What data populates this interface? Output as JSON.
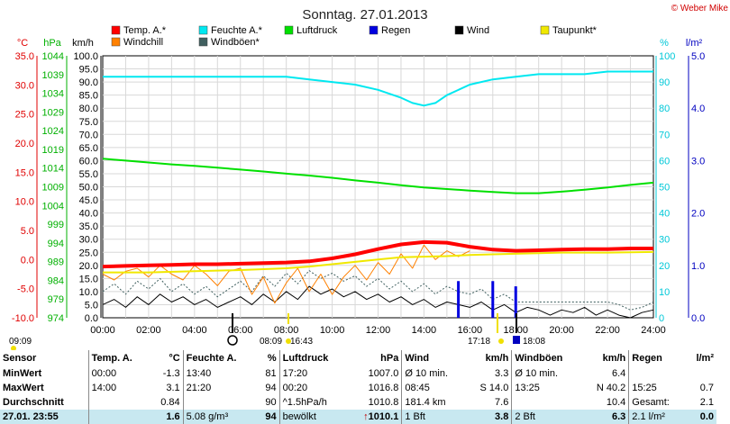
{
  "title": "Sonntag. 27.01.2013",
  "copyright": "© Weber Mike",
  "legend": [
    {
      "label": "Temp. A.*",
      "color": "#ff0000"
    },
    {
      "label": "Feuchte A.*",
      "color": "#00e8f0"
    },
    {
      "label": "Luftdruck",
      "color": "#00e000"
    },
    {
      "label": "Regen",
      "color": "#0000e0"
    },
    {
      "label": "Wind",
      "color": "#000000"
    },
    {
      "label": "Taupunkt*",
      "color": "#f0e800"
    },
    {
      "label": "Windchill",
      "color": "#ff8000"
    },
    {
      "label": "Windböen*",
      "color": "#406060"
    }
  ],
  "axis_units": {
    "temp": "°C",
    "pressure": "hPa",
    "wind": "km/h",
    "humidity": "%",
    "rain": "l/m²"
  },
  "chart_data": {
    "type": "line",
    "x_labels": [
      "00:00",
      "02:00",
      "04:00",
      "06:00",
      "08:00",
      "10:00",
      "12:00",
      "14:00",
      "16:00",
      "18:00",
      "20:00",
      "22:00",
      "24:00"
    ],
    "axes": {
      "temp": {
        "min": -10,
        "max": 35,
        "ticks": [
          "35.0",
          "30.0",
          "25.0",
          "20.0",
          "15.0",
          "10.0",
          "5.0",
          "0.0",
          "-5.0",
          "-10.0"
        ]
      },
      "pressure": {
        "min": 974,
        "max": 1044,
        "ticks": [
          "1044",
          "1039",
          "1034",
          "1029",
          "1024",
          "1019",
          "1014",
          "1009",
          "1004",
          "999",
          "994",
          "989",
          "984",
          "979",
          "974"
        ]
      },
      "wind": {
        "min": 0,
        "max": 100,
        "ticks": [
          "100.0",
          "95.0",
          "90.0",
          "85.0",
          "80.0",
          "75.0",
          "70.0",
          "65.0",
          "60.0",
          "55.0",
          "50.0",
          "45.0",
          "40.0",
          "35.0",
          "30.0",
          "25.0",
          "20.0",
          "15.0",
          "10.0",
          "5.0",
          "0.0"
        ]
      },
      "humidity": {
        "min": 0,
        "max": 100,
        "ticks": [
          "100",
          "90",
          "80",
          "70",
          "60",
          "50",
          "40",
          "30",
          "20",
          "10",
          "0"
        ]
      },
      "rain": {
        "min": 0,
        "max": 5,
        "ticks": [
          "5.0",
          "4.0",
          "3.0",
          "2.0",
          "1.0",
          "0.0"
        ]
      }
    },
    "series": [
      {
        "name": "Temp. A.*",
        "axis": "temp",
        "color": "#ff0000",
        "x": [
          0,
          1,
          2,
          3,
          4,
          5,
          6,
          7,
          8,
          9,
          10,
          11,
          12,
          13,
          14,
          15,
          16,
          17,
          18,
          19,
          20,
          21,
          22,
          23,
          24
        ],
        "y": [
          -1.2,
          -1.1,
          -1.0,
          -0.9,
          -0.8,
          -0.8,
          -0.7,
          -0.6,
          -0.5,
          -0.3,
          0.2,
          0.9,
          1.8,
          2.6,
          3.0,
          2.9,
          2.2,
          1.7,
          1.5,
          1.6,
          1.7,
          1.8,
          1.8,
          1.9,
          1.9
        ]
      },
      {
        "name": "Feuchte A.*",
        "axis": "humidity",
        "color": "#00e8f0",
        "x": [
          0,
          2,
          4,
          6,
          8,
          9,
          10,
          11,
          12,
          13,
          13.5,
          14,
          14.5,
          15,
          16,
          17,
          18,
          19,
          20,
          21,
          22,
          23,
          24
        ],
        "y": [
          92,
          92,
          92,
          92,
          92,
          91,
          90,
          89,
          87,
          84,
          82,
          81,
          82,
          85,
          89,
          91,
          92,
          93,
          93,
          93,
          94,
          94,
          94
        ]
      },
      {
        "name": "Luftdruck",
        "axis": "pressure",
        "color": "#00e000",
        "x": [
          0,
          1,
          2,
          3,
          4,
          5,
          6,
          7,
          8,
          9,
          10,
          11,
          12,
          13,
          14,
          15,
          16,
          17,
          18,
          19,
          20,
          21,
          22,
          23,
          24
        ],
        "y": [
          1016.5,
          1016.0,
          1015.5,
          1015.0,
          1014.6,
          1014.1,
          1013.6,
          1013.1,
          1012.5,
          1012.0,
          1011.4,
          1010.7,
          1010.1,
          1009.4,
          1008.8,
          1008.4,
          1008.0,
          1007.6,
          1007.3,
          1007.3,
          1007.7,
          1008.2,
          1008.8,
          1009.5,
          1010.1
        ]
      },
      {
        "name": "Taupunkt*",
        "axis": "temp",
        "color": "#f0e800",
        "x": [
          0,
          2,
          4,
          6,
          8,
          9,
          10,
          11,
          12,
          13,
          14,
          15,
          16,
          17,
          18,
          20,
          22,
          24
        ],
        "y": [
          -2.2,
          -2.2,
          -2.0,
          -1.8,
          -1.5,
          -1.2,
          -0.8,
          -0.4,
          0.0,
          0.4,
          0.5,
          0.6,
          0.8,
          0.9,
          1.0,
          1.2,
          1.2,
          1.3
        ]
      },
      {
        "name": "Windchill",
        "axis": "temp",
        "color": "#ff8000",
        "x": [
          0,
          0.5,
          1,
          1.5,
          2,
          2.5,
          3,
          3.5,
          4,
          4.5,
          5,
          5.5,
          6,
          6.5,
          7,
          7.5,
          8,
          8.5,
          9,
          9.5,
          10,
          10.5,
          11,
          11.5,
          12,
          12.5,
          13,
          13.5,
          14,
          14.5,
          15,
          15.5,
          16
        ],
        "y": [
          -2.5,
          -3.5,
          -2.0,
          -1.5,
          -3.0,
          -1.0,
          -2.5,
          -3.5,
          -1.0,
          -2.5,
          -4.5,
          -2.0,
          -1.5,
          -6.0,
          -3.0,
          -7.5,
          -4.0,
          -1.5,
          -5.5,
          -2.5,
          -6.0,
          -3.0,
          -1.0,
          -3.5,
          -0.5,
          -2.5,
          1.0,
          -1.5,
          2.5,
          0.0,
          1.5,
          0.5,
          1.5
        ]
      },
      {
        "name": "Wind",
        "axis": "wind",
        "color": "#000000",
        "x": [
          0,
          0.5,
          1,
          1.5,
          2,
          2.5,
          3,
          3.5,
          4,
          4.5,
          5,
          5.5,
          6,
          6.5,
          7,
          7.5,
          8,
          8.5,
          9,
          9.5,
          10,
          10.5,
          11,
          11.5,
          12,
          12.5,
          13,
          13.5,
          14,
          14.5,
          15,
          15.5,
          16,
          16.5,
          17,
          17.5,
          18,
          18.5,
          19,
          19.5,
          20,
          20.5,
          21,
          21.5,
          22,
          22.5,
          23,
          23.5,
          24
        ],
        "y": [
          5,
          7,
          4,
          8,
          5,
          9,
          6,
          8,
          5,
          7,
          4,
          6,
          8,
          5,
          9,
          6,
          10,
          7,
          12,
          9,
          11,
          8,
          10,
          7,
          9,
          6,
          8,
          5,
          7,
          4,
          6,
          5,
          4,
          6,
          3,
          5,
          2,
          4,
          3,
          1,
          3,
          2,
          4,
          1,
          3,
          1,
          0,
          2,
          3
        ]
      },
      {
        "name": "Windböen*",
        "axis": "wind",
        "color": "#406060",
        "x": [
          0,
          0.5,
          1,
          1.5,
          2,
          2.5,
          3,
          3.5,
          4,
          4.5,
          5,
          5.5,
          6,
          6.5,
          7,
          7.5,
          8,
          8.5,
          9,
          9.5,
          10,
          10.5,
          11,
          11.5,
          12,
          12.5,
          13,
          13.5,
          14,
          14.5,
          15,
          15.5,
          16,
          16.5,
          17,
          17.5,
          18,
          19,
          20,
          21,
          22,
          22.5,
          23,
          23.5,
          24
        ],
        "y": [
          10,
          13,
          9,
          14,
          11,
          15,
          10,
          13,
          9,
          12,
          8,
          11,
          14,
          10,
          16,
          12,
          17,
          13,
          18,
          15,
          17,
          14,
          16,
          12,
          15,
          11,
          14,
          10,
          13,
          9,
          12,
          10,
          9,
          11,
          7,
          9,
          6,
          6,
          6,
          6,
          6,
          5,
          3,
          4,
          6
        ]
      },
      {
        "name": "Regen",
        "axis": "rain",
        "color": "#0000e0",
        "x": [
          15.5,
          17.0,
          18.0
        ],
        "y": [
          0.7,
          0.7,
          0.6
        ]
      }
    ]
  },
  "markers": {
    "left_time": "09:09",
    "bottom": [
      {
        "label": "08:09",
        "detail": "16:43"
      },
      {
        "label": "17:18"
      },
      {
        "label": "18:08"
      }
    ]
  },
  "table": {
    "headers": [
      "Sensor",
      "Temp. A.",
      "°C",
      "Feuchte A.",
      "%",
      "Luftdruck",
      "hPa",
      "Wind",
      "km/h",
      "Windböen",
      "km/h",
      "Regen",
      "l/m²"
    ],
    "rows": [
      [
        "MinWert",
        "00:00",
        "-1.3",
        "13:40",
        "81",
        "17:20",
        "1007.0",
        "Ø 10 min.",
        "3.3",
        "Ø 10 min.",
        "6.4",
        "",
        ""
      ],
      [
        "MaxWert",
        "14:00",
        "3.1",
        "21:20",
        "94",
        "00:20",
        "1016.8",
        "08:45",
        "S 14.0",
        "13:25",
        "N 40.2",
        "15:25",
        "0.7"
      ],
      [
        "Durchschnitt",
        "",
        "0.84",
        "",
        "90",
        "^1.5hPa/h",
        "1010.8",
        "181.4 km",
        "7.6",
        "",
        "10.4",
        "Gesamt:",
        "2.1"
      ]
    ],
    "footer": [
      "27.01. 23:55",
      "",
      "1.6",
      "5.08 g/m³",
      "94",
      "bewölkt",
      "1010.1",
      "1 Bft",
      "3.8",
      "2 Bft",
      "6.3",
      "2.1 l/m²",
      "0.0"
    ]
  }
}
